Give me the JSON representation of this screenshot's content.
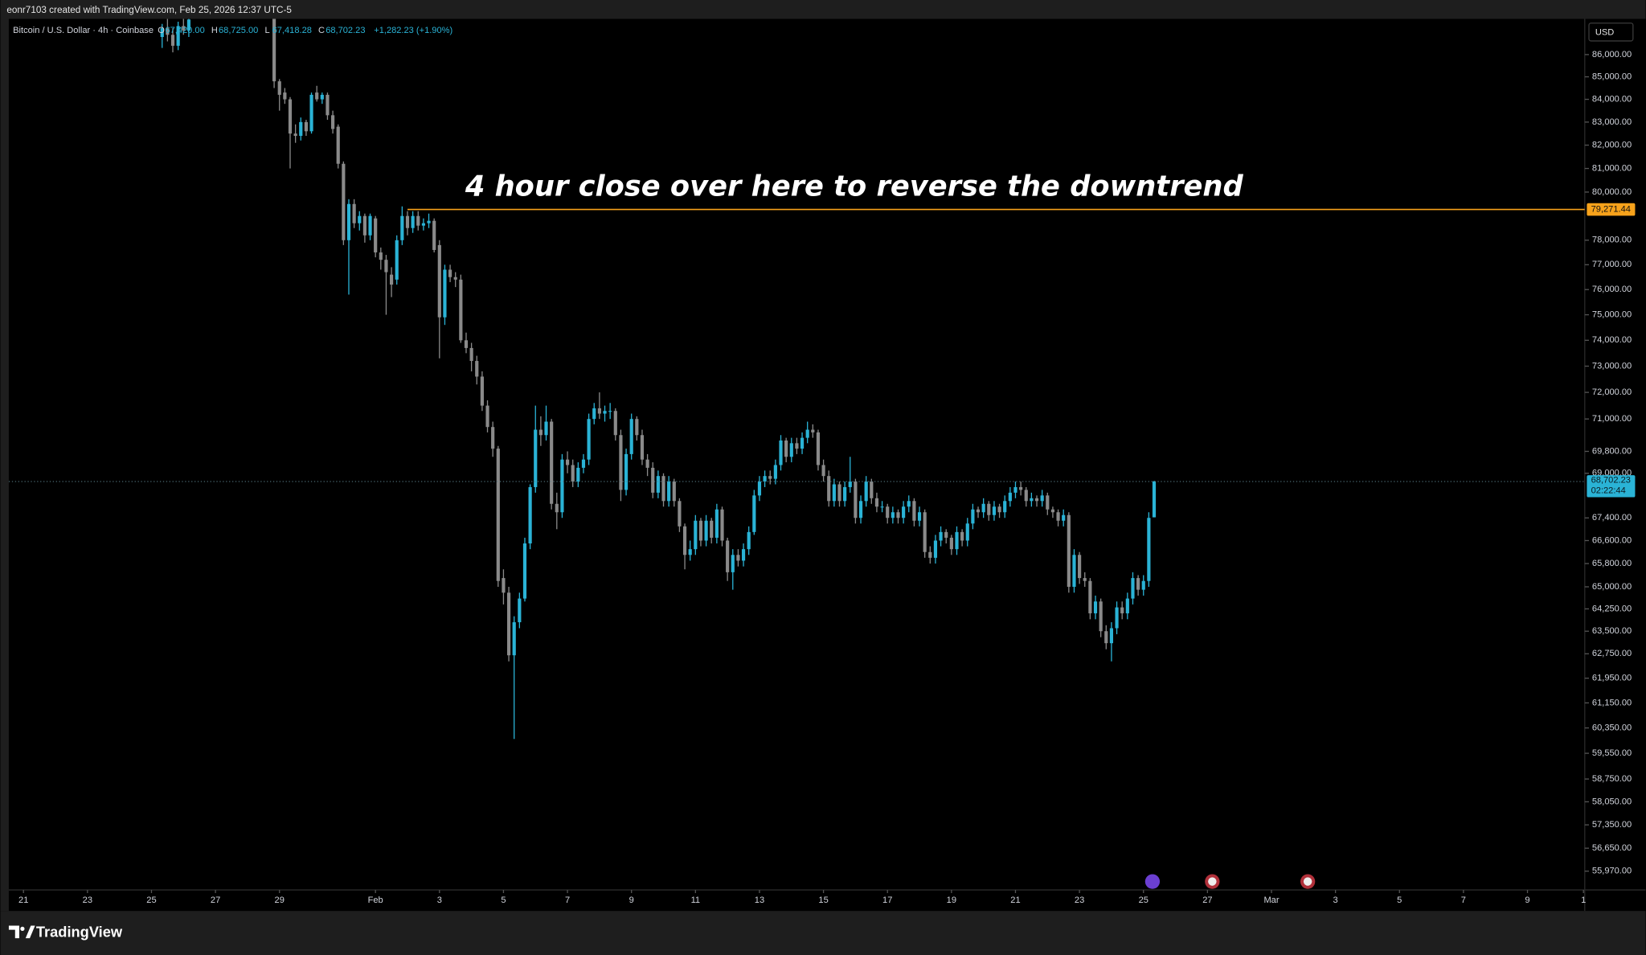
{
  "header": {
    "credit": "eonr7103 created with TradingView.com, Feb 25, 2026 12:37 UTC-5",
    "symbol": "Bitcoin / U.S. Dollar · 4h · Coinbase",
    "ohlc_labels": [
      "O",
      "H",
      "L",
      "C"
    ],
    "ohlc_values": [
      "67,420.00",
      "68,725.00",
      "67,418.28",
      "68,702.23"
    ],
    "change": "+1,282.23 (+1.90%)",
    "currency": "USD"
  },
  "footer": {
    "brand": "TradingView"
  },
  "chart_data": {
    "type": "candlestick",
    "log_scale": true,
    "grid": false,
    "up_color": "#2ab3d6",
    "down_color": "#8a8a8a",
    "annotation": "4 hour close over here to reverse the downtrend",
    "level": {
      "value": 79271.44,
      "label": "79,271.44",
      "color": "#f7a21b"
    },
    "last_price": {
      "value": 68702.23,
      "label": "68,702.23"
    },
    "countdown": "02:22:44",
    "ylim": [
      55420,
      87630
    ],
    "yticks": [
      {
        "value": 86000,
        "label": "86,000.00"
      },
      {
        "value": 85000,
        "label": "85,000.00"
      },
      {
        "value": 84000,
        "label": "84,000.00"
      },
      {
        "value": 83000,
        "label": "83,000.00"
      },
      {
        "value": 82000,
        "label": "82,000.00"
      },
      {
        "value": 81000,
        "label": "81,000.00"
      },
      {
        "value": 80000,
        "label": "80,000.00"
      },
      {
        "value": 78000,
        "label": "78,000.00"
      },
      {
        "value": 77000,
        "label": "77,000.00"
      },
      {
        "value": 76000,
        "label": "76,000.00"
      },
      {
        "value": 75000,
        "label": "75,000.00"
      },
      {
        "value": 74000,
        "label": "74,000.00"
      },
      {
        "value": 73000,
        "label": "73,000.00"
      },
      {
        "value": 72000,
        "label": "72,000.00"
      },
      {
        "value": 71000,
        "label": "71,000.00"
      },
      {
        "value": 69800,
        "label": "69,800.00"
      },
      {
        "value": 69000,
        "label": "69,000.00"
      },
      {
        "value": 67400,
        "label": "67,400.00"
      },
      {
        "value": 66600,
        "label": "66,600.00"
      },
      {
        "value": 65800,
        "label": "65,800.00"
      },
      {
        "value": 65000,
        "label": "65,000.00"
      },
      {
        "value": 64250,
        "label": "64,250.00"
      },
      {
        "value": 63500,
        "label": "63,500.00"
      },
      {
        "value": 62750,
        "label": "62,750.00"
      },
      {
        "value": 61950,
        "label": "61,950.00"
      },
      {
        "value": 61150,
        "label": "61,150.00"
      },
      {
        "value": 60350,
        "label": "60,350.00"
      },
      {
        "value": 59550,
        "label": "59,550.00"
      },
      {
        "value": 58750,
        "label": "58,750.00"
      },
      {
        "value": 58050,
        "label": "58,050.00"
      },
      {
        "value": 57350,
        "label": "57,350.00"
      },
      {
        "value": 56650,
        "label": "56,650.00"
      },
      {
        "value": 55970,
        "label": "55,970.00"
      }
    ],
    "xlim": [
      -0.459,
      48.79
    ],
    "xticks": [
      {
        "value": 0,
        "label": "21"
      },
      {
        "value": 2,
        "label": "23"
      },
      {
        "value": 4,
        "label": "25"
      },
      {
        "value": 6,
        "label": "27"
      },
      {
        "value": 8,
        "label": "29"
      },
      {
        "value": 11,
        "label": "Feb"
      },
      {
        "value": 13,
        "label": "3"
      },
      {
        "value": 15,
        "label": "5"
      },
      {
        "value": 17,
        "label": "7"
      },
      {
        "value": 19,
        "label": "9"
      },
      {
        "value": 21,
        "label": "11"
      },
      {
        "value": 23,
        "label": "13"
      },
      {
        "value": 25,
        "label": "15"
      },
      {
        "value": 27,
        "label": "17"
      },
      {
        "value": 29,
        "label": "19"
      },
      {
        "value": 31,
        "label": "21"
      },
      {
        "value": 33,
        "label": "23"
      },
      {
        "value": 35,
        "label": "25"
      },
      {
        "value": 37,
        "label": "27"
      },
      {
        "value": 39,
        "label": "Mar"
      },
      {
        "value": 41,
        "label": "3"
      },
      {
        "value": 43,
        "label": "5"
      },
      {
        "value": 45,
        "label": "7"
      },
      {
        "value": 47,
        "label": "9"
      },
      {
        "value": 48.75,
        "label": "1"
      }
    ],
    "candles": [
      null,
      null,
      null,
      null,
      null,
      null,
      null,
      null,
      null,
      null,
      null,
      null,
      null,
      null,
      null,
      null,
      null,
      null,
      null,
      null,
      null,
      null,
      null,
      null,
      null,
      null,
      [
        86800,
        87400,
        86300,
        87200
      ],
      [
        87200,
        87700,
        86600,
        86900
      ],
      [
        86900,
        87200,
        86100,
        86400
      ],
      [
        86400,
        87500,
        86200,
        87300
      ],
      [
        87300,
        87700,
        86900,
        87100
      ],
      [
        87100,
        87800,
        86800,
        87600
      ],
      null,
      null,
      null,
      null,
      null,
      null,
      null,
      null,
      null,
      null,
      null,
      null,
      null,
      null,
      null,
      [
        87700,
        87800,
        84500,
        84800
      ],
      [
        84800,
        84900,
        83500,
        84200
      ],
      [
        84300,
        84500,
        83800,
        84000
      ],
      [
        84000,
        84100,
        81000,
        82500
      ],
      [
        82500,
        82900,
        82100,
        82400
      ],
      [
        82400,
        83200,
        82200,
        83000
      ],
      [
        83000,
        83100,
        82400,
        82600
      ],
      [
        82600,
        84300,
        82500,
        84200
      ],
      [
        84300,
        84600,
        83900,
        84000
      ],
      [
        84000,
        84300,
        83800,
        84200
      ],
      [
        84200,
        84300,
        83100,
        83300
      ],
      [
        83300,
        83500,
        82500,
        82700
      ],
      [
        82800,
        82900,
        81000,
        81200
      ],
      [
        81200,
        81300,
        77800,
        78000
      ],
      [
        78000,
        79700,
        75800,
        79500
      ],
      [
        79500,
        79700,
        78500,
        78700
      ],
      [
        78700,
        79200,
        78400,
        79000
      ],
      [
        79000,
        79100,
        77900,
        78200
      ],
      [
        78200,
        79100,
        78000,
        79000
      ],
      [
        78900,
        79000,
        77300,
        77500
      ],
      [
        77500,
        77700,
        76800,
        77200
      ],
      [
        77200,
        77400,
        75000,
        76700
      ],
      [
        76600,
        76900,
        75700,
        76200
      ],
      [
        76400,
        78200,
        76200,
        78000
      ],
      [
        78000,
        79400,
        77800,
        79000
      ],
      [
        79000,
        79200,
        78200,
        78500
      ],
      [
        78500,
        79200,
        78300,
        79000
      ],
      [
        79000,
        79200,
        78400,
        78600
      ],
      [
        78600,
        78900,
        78400,
        78700
      ],
      [
        78700,
        79100,
        78500,
        78800
      ],
      [
        78800,
        78900,
        77500,
        77600
      ],
      [
        77800,
        78000,
        73300,
        74900
      ],
      [
        74900,
        77000,
        74600,
        76800
      ],
      [
        76800,
        77000,
        76300,
        76500
      ],
      [
        76500,
        76700,
        76100,
        76400
      ],
      [
        76400,
        76600,
        73900,
        74000
      ],
      [
        74000,
        74300,
        73500,
        73700
      ],
      [
        73700,
        73900,
        72800,
        73200
      ],
      [
        73200,
        73400,
        72300,
        72600
      ],
      [
        72600,
        72800,
        71300,
        71500
      ],
      [
        71500,
        71700,
        70500,
        70700
      ],
      [
        70700,
        70900,
        69600,
        69900
      ],
      [
        69900,
        70000,
        65000,
        65200
      ],
      [
        65300,
        65600,
        64400,
        64800
      ],
      [
        64800,
        65000,
        62500,
        62700
      ],
      [
        62700,
        64000,
        60000,
        63800
      ],
      [
        63800,
        64800,
        63600,
        64600
      ],
      [
        64600,
        66700,
        64500,
        66500
      ],
      [
        66500,
        68600,
        66300,
        68500
      ],
      [
        68500,
        71500,
        68300,
        70600
      ],
      [
        70600,
        71100,
        70000,
        70400
      ],
      [
        70400,
        71500,
        70200,
        70900
      ],
      [
        70900,
        71000,
        67700,
        67900
      ],
      [
        67900,
        68300,
        67000,
        67600
      ],
      [
        67600,
        69700,
        67400,
        69500
      ],
      [
        69500,
        69800,
        69000,
        69300
      ],
      [
        69300,
        69500,
        68500,
        68700
      ],
      [
        68700,
        69400,
        68500,
        69200
      ],
      [
        69200,
        69700,
        69000,
        69500
      ],
      [
        69500,
        71200,
        69300,
        71000
      ],
      [
        71000,
        71600,
        70800,
        71400
      ],
      [
        71400,
        72000,
        71000,
        71200
      ],
      [
        71200,
        71500,
        70900,
        71300
      ],
      [
        71300,
        71600,
        71000,
        71300
      ],
      [
        71300,
        71400,
        70200,
        70400
      ],
      [
        70400,
        70600,
        68000,
        68400
      ],
      [
        68400,
        69900,
        68200,
        69700
      ],
      [
        69700,
        71200,
        69500,
        71000
      ],
      [
        71000,
        71100,
        70200,
        70400
      ],
      [
        70400,
        70600,
        69300,
        69500
      ],
      [
        69500,
        69700,
        68900,
        69200
      ],
      [
        69200,
        69400,
        68100,
        68300
      ],
      [
        68300,
        69100,
        68100,
        68900
      ],
      [
        68900,
        69000,
        67800,
        68000
      ],
      [
        68000,
        68900,
        67800,
        68700
      ],
      [
        68700,
        68800,
        67800,
        68000
      ],
      [
        68000,
        68100,
        66900,
        67100
      ],
      [
        67100,
        67200,
        65600,
        66100
      ],
      [
        66100,
        66600,
        65900,
        66300
      ],
      [
        66300,
        67500,
        66100,
        67300
      ],
      [
        67300,
        67400,
        66400,
        66600
      ],
      [
        66600,
        67500,
        66400,
        67300
      ],
      [
        67300,
        67400,
        66500,
        66700
      ],
      [
        66700,
        67900,
        66500,
        67700
      ],
      [
        67700,
        67800,
        66400,
        66600
      ],
      [
        66600,
        66700,
        65200,
        65500
      ],
      [
        65500,
        66300,
        64900,
        66100
      ],
      [
        66100,
        66300,
        65700,
        65900
      ],
      [
        65900,
        66500,
        65700,
        66300
      ],
      [
        66300,
        67100,
        66100,
        66900
      ],
      [
        66900,
        68400,
        66800,
        68200
      ],
      [
        68200,
        68900,
        68000,
        68700
      ],
      [
        68700,
        69100,
        68500,
        68900
      ],
      [
        68900,
        69100,
        68600,
        68800
      ],
      [
        68800,
        69500,
        68600,
        69300
      ],
      [
        69300,
        70400,
        69100,
        70200
      ],
      [
        70200,
        70300,
        69400,
        69600
      ],
      [
        69600,
        70300,
        69400,
        70100
      ],
      [
        70100,
        70300,
        69700,
        69900
      ],
      [
        69900,
        70500,
        69700,
        70300
      ],
      [
        70300,
        70900,
        70100,
        70600
      ],
      [
        70600,
        70800,
        70300,
        70500
      ],
      [
        70500,
        70600,
        69100,
        69300
      ],
      [
        69300,
        69500,
        68700,
        68900
      ],
      [
        68900,
        69100,
        67800,
        68000
      ],
      [
        68000,
        68800,
        67800,
        68600
      ],
      [
        68600,
        68700,
        67800,
        68000
      ],
      [
        68000,
        68700,
        67800,
        68500
      ],
      [
        68500,
        69600,
        68300,
        68700
      ],
      [
        68700,
        68800,
        67200,
        67400
      ],
      [
        67400,
        68200,
        67200,
        68000
      ],
      [
        68000,
        68900,
        67800,
        68700
      ],
      [
        68700,
        68800,
        67900,
        68100
      ],
      [
        68100,
        68300,
        67600,
        67800
      ],
      [
        67800,
        68000,
        67600,
        67800
      ],
      [
        67800,
        67900,
        67200,
        67400
      ],
      [
        67400,
        67800,
        67200,
        67600
      ],
      [
        67600,
        67700,
        67200,
        67400
      ],
      [
        67400,
        68000,
        67200,
        67800
      ],
      [
        67800,
        68200,
        67600,
        68000
      ],
      [
        68000,
        68100,
        67100,
        67300
      ],
      [
        67300,
        67800,
        67100,
        67600
      ],
      [
        67600,
        67700,
        66000,
        66200
      ],
      [
        66200,
        66400,
        65800,
        66000
      ],
      [
        66000,
        66800,
        65800,
        66600
      ],
      [
        66600,
        67100,
        66400,
        66900
      ],
      [
        66900,
        67000,
        66500,
        66700
      ],
      [
        66700,
        66800,
        66100,
        66300
      ],
      [
        66300,
        67100,
        66100,
        66900
      ],
      [
        66900,
        67000,
        66400,
        66600
      ],
      [
        66600,
        67400,
        66400,
        67200
      ],
      [
        67200,
        67900,
        67000,
        67700
      ],
      [
        67700,
        67800,
        67400,
        67600
      ],
      [
        67600,
        68100,
        67400,
        67900
      ],
      [
        67900,
        68000,
        67300,
        67500
      ],
      [
        67500,
        68000,
        67300,
        67800
      ],
      [
        67800,
        67900,
        67400,
        67600
      ],
      [
        67600,
        68200,
        67400,
        68000
      ],
      [
        68000,
        68500,
        67800,
        68300
      ],
      [
        68300,
        68700,
        68100,
        68500
      ],
      [
        68500,
        68700,
        68200,
        68400
      ],
      [
        68400,
        68500,
        67800,
        68000
      ],
      [
        68000,
        68300,
        67800,
        68100
      ],
      [
        68100,
        68200,
        67800,
        68000
      ],
      [
        68000,
        68400,
        67800,
        68200
      ],
      [
        68200,
        68300,
        67500,
        67700
      ],
      [
        67700,
        67800,
        67400,
        67600
      ],
      [
        67600,
        67700,
        67100,
        67300
      ],
      [
        67300,
        67700,
        67100,
        67500
      ],
      [
        67500,
        67600,
        64800,
        65000
      ],
      [
        65000,
        66300,
        64800,
        66100
      ],
      [
        66100,
        66200,
        65100,
        65300
      ],
      [
        65300,
        65500,
        65000,
        65200
      ],
      [
        65200,
        65300,
        63900,
        64100
      ],
      [
        64100,
        64700,
        63900,
        64500
      ],
      [
        64500,
        64600,
        63300,
        63500
      ],
      [
        63500,
        63700,
        62900,
        63100
      ],
      [
        63100,
        63800,
        62500,
        63600
      ],
      [
        63600,
        64500,
        63400,
        64300
      ],
      [
        64300,
        64500,
        63900,
        64100
      ],
      [
        64100,
        64800,
        63900,
        64600
      ],
      [
        64600,
        65500,
        64400,
        65300
      ],
      [
        65300,
        65400,
        64700,
        64900
      ],
      [
        64900,
        65400,
        64700,
        65200
      ],
      [
        65200,
        67600,
        65000,
        67400
      ],
      [
        67420,
        68725,
        67418.28,
        68702.23
      ]
    ]
  }
}
